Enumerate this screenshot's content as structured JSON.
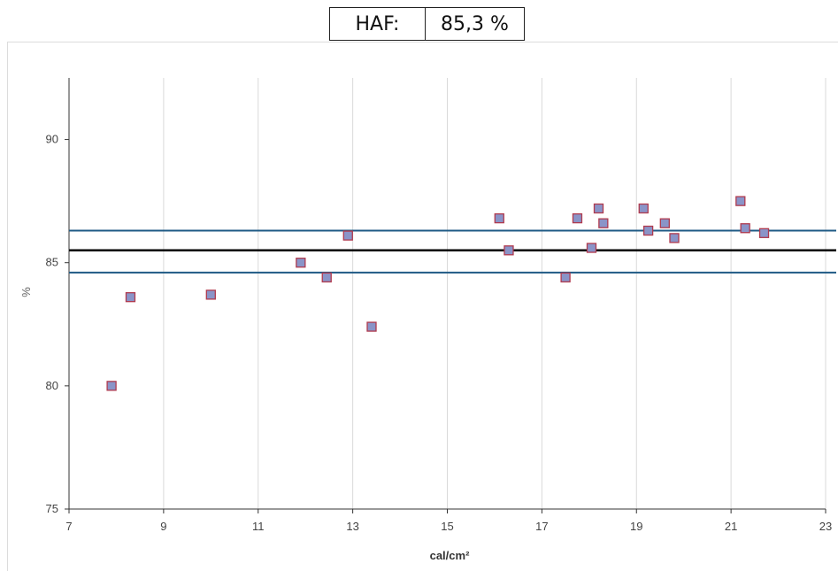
{
  "header": {
    "label": "HAF:",
    "value": "85,3 %"
  },
  "chart_data": {
    "type": "scatter",
    "title": "",
    "xlabel": "cal/cm²",
    "ylabel": "%",
    "xlim": [
      7,
      23
    ],
    "ylim": [
      75,
      92.5
    ],
    "x_ticks": [
      "7",
      "9",
      "11",
      "13",
      "15",
      "17",
      "19",
      "21",
      "23"
    ],
    "y_ticks": [
      "75",
      "80",
      "85",
      "90"
    ],
    "grid": "vertical",
    "colors": {
      "marker_fill": "#8a94c8",
      "marker_edge": "#b03a4e",
      "mean_line": "#000000",
      "band_line": "#1f5a85"
    },
    "reference_lines": [
      {
        "y": 86.3,
        "role": "upper"
      },
      {
        "y": 85.5,
        "role": "mean"
      },
      {
        "y": 84.6,
        "role": "lower"
      }
    ],
    "series": [
      {
        "points": [
          {
            "x": 7.9,
            "y": 80.0
          },
          {
            "x": 8.3,
            "y": 83.6
          },
          {
            "x": 10.0,
            "y": 83.7
          },
          {
            "x": 11.9,
            "y": 85.0
          },
          {
            "x": 12.45,
            "y": 84.4
          },
          {
            "x": 12.9,
            "y": 86.1
          },
          {
            "x": 13.4,
            "y": 82.4
          },
          {
            "x": 16.1,
            "y": 86.8
          },
          {
            "x": 16.3,
            "y": 85.5
          },
          {
            "x": 17.5,
            "y": 84.4
          },
          {
            "x": 17.75,
            "y": 86.8
          },
          {
            "x": 18.05,
            "y": 85.6
          },
          {
            "x": 18.2,
            "y": 87.2
          },
          {
            "x": 18.3,
            "y": 86.6
          },
          {
            "x": 19.15,
            "y": 87.2
          },
          {
            "x": 19.25,
            "y": 86.3
          },
          {
            "x": 19.6,
            "y": 86.6
          },
          {
            "x": 19.8,
            "y": 86.0
          },
          {
            "x": 21.2,
            "y": 87.5
          },
          {
            "x": 21.3,
            "y": 86.4
          },
          {
            "x": 21.7,
            "y": 86.2
          }
        ]
      }
    ]
  }
}
